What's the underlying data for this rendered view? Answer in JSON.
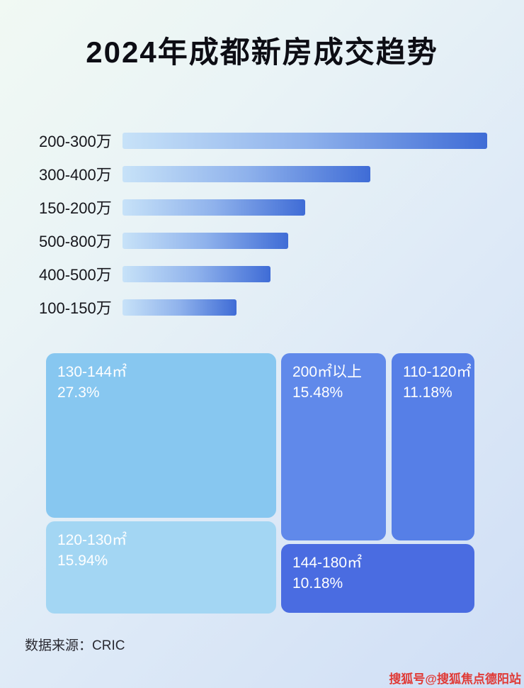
{
  "page": {
    "title": "2024年成都新房成交趋势"
  },
  "chart_data": [
    {
      "type": "bar",
      "title": "2024年成都新房成交趋势",
      "orientation": "horizontal",
      "categories": [
        "200-300万",
        "300-400万",
        "150-200万",
        "500-800万",
        "400-500万",
        "100-150万"
      ],
      "values_percent_of_max": [
        100,
        68,
        50,
        45.4,
        40.6,
        31.3
      ],
      "xlabel": "",
      "ylabel": "",
      "legend": "none",
      "grid": "off",
      "bar_gradient": [
        "#c7e2f8",
        "#3f6cd6"
      ]
    },
    {
      "type": "treemap",
      "items": [
        {
          "label": "130-144㎡",
          "value": "27.3%",
          "color": "#87c7f0"
        },
        {
          "label": "120-130㎡",
          "value": "15.94%",
          "color": "#a3d6f3"
        },
        {
          "label": "200㎡以上",
          "value": "15.48%",
          "color": "#6089ea"
        },
        {
          "label": "110-120㎡",
          "value": "11.18%",
          "color": "#567fe7"
        },
        {
          "label": "144-180㎡",
          "value": "10.18%",
          "color": "#4a6ce1"
        }
      ]
    }
  ],
  "footer": {
    "source_label": "数据来源：CRIC"
  },
  "watermark": {
    "text": "搜狐号@搜狐焦点德阳站"
  }
}
